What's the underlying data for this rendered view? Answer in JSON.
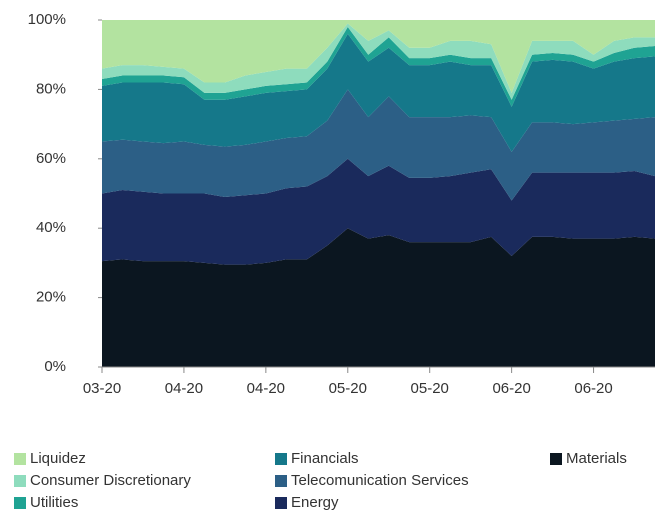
{
  "chart_data": {
    "type": "stacked_area",
    "categories": [
      "03-20",
      null,
      null,
      null,
      "04-20",
      null,
      null,
      null,
      "04-20",
      null,
      null,
      null,
      "05-20",
      null,
      null,
      null,
      "05-20",
      null,
      null,
      null,
      "06-20",
      null,
      null,
      null,
      "06-20",
      null,
      null,
      null
    ],
    "ylim": [
      0,
      100
    ],
    "yticks": [
      {
        "value": 0,
        "label": "0%"
      },
      {
        "value": 20,
        "label": "20%"
      },
      {
        "value": 40,
        "label": "40%"
      },
      {
        "value": 60,
        "label": "60%"
      },
      {
        "value": 80,
        "label": "80%"
      },
      {
        "value": 100,
        "label": "100%"
      }
    ],
    "series": [
      {
        "name": "Liquidez",
        "color": "#b3e3a0",
        "values": [
          14,
          13,
          13,
          13.5,
          14,
          18,
          18,
          16,
          15,
          14,
          14,
          8,
          1,
          6,
          3,
          8,
          8,
          6,
          6,
          7,
          21,
          6,
          6,
          6,
          10,
          6,
          5,
          5
        ]
      },
      {
        "name": "Consumer Discretionary",
        "color": "#8edcbd",
        "values": [
          3,
          3,
          3,
          2.5,
          2.5,
          3,
          3,
          4,
          4,
          4.5,
          4,
          4,
          1,
          4,
          2,
          3,
          3,
          4,
          5,
          4,
          2,
          4,
          3.5,
          4,
          2,
          3.5,
          3,
          2.5
        ]
      },
      {
        "name": "Utilities",
        "color": "#1fa393",
        "values": [
          2,
          2,
          2,
          2,
          2,
          2,
          2,
          2,
          2,
          2,
          2,
          2,
          2,
          2,
          3,
          2,
          2,
          2,
          2,
          2,
          2,
          2,
          2,
          2,
          2,
          2.5,
          3,
          3
        ]
      },
      {
        "name": "Financials",
        "color": "#15788a",
        "values": [
          16,
          16.5,
          17,
          17.5,
          16.5,
          13,
          13.5,
          14,
          14,
          13.5,
          13.5,
          15,
          16,
          16,
          14,
          15,
          15,
          16,
          14.5,
          15,
          13,
          17.5,
          18,
          18,
          15.5,
          17,
          17.5,
          17.5
        ]
      },
      {
        "name": "Telecomunication Services",
        "color": "#2c5f86",
        "values": [
          15,
          14.5,
          14.5,
          14.5,
          15,
          14,
          14.5,
          14.5,
          15,
          14.5,
          14.5,
          16,
          20,
          17,
          20,
          17.5,
          17.5,
          17,
          16.5,
          15,
          14,
          14.5,
          14.5,
          14,
          14.5,
          15,
          15,
          17
        ]
      },
      {
        "name": "Energy",
        "color": "#1a2a5c",
        "values": [
          19.5,
          20,
          20,
          19.5,
          19.5,
          20,
          19.5,
          20,
          20,
          20.5,
          21,
          20,
          20,
          18,
          20,
          18.5,
          18.5,
          19,
          20,
          19.5,
          16,
          18.5,
          18.5,
          19,
          19,
          19,
          19,
          18
        ]
      },
      {
        "name": "Materials",
        "color": "#0b1620",
        "values": [
          30.5,
          31,
          30.5,
          30.5,
          30.5,
          30,
          29.5,
          29.5,
          30,
          31,
          31,
          35,
          40,
          37,
          38,
          36,
          36,
          36,
          36,
          37.5,
          32,
          37.5,
          37.5,
          37,
          37,
          37,
          37.5,
          37
        ]
      }
    ]
  }
}
